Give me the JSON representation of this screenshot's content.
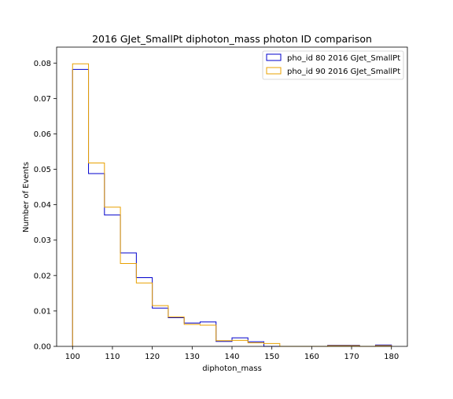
{
  "chart_data": {
    "type": "step",
    "title": "2016 GJet_SmallPt diphoton_mass photon ID comparison",
    "xlabel": "diphoton_mass",
    "ylabel": "Number of Events",
    "xlim": [
      96,
      184
    ],
    "ylim": [
      0,
      0.0845
    ],
    "xticks": [
      100,
      110,
      120,
      130,
      140,
      150,
      160,
      170,
      180
    ],
    "yticks": [
      0.0,
      0.01,
      0.02,
      0.03,
      0.04,
      0.05,
      0.06,
      0.07,
      0.08
    ],
    "ytick_labels": [
      "0.00",
      "0.01",
      "0.02",
      "0.03",
      "0.04",
      "0.05",
      "0.06",
      "0.07",
      "0.08"
    ],
    "bin_edges": [
      100,
      104,
      108,
      112,
      116,
      120,
      124,
      128,
      132,
      136,
      140,
      144,
      148,
      152,
      156,
      160,
      164,
      168,
      172,
      176,
      180
    ],
    "legend_position": "upper right",
    "series": [
      {
        "name": "pho_id 80 2016 GJet_SmallPt",
        "color": "#0000cc",
        "values": [
          0.0782,
          0.0488,
          0.0371,
          0.0264,
          0.0194,
          0.0108,
          0.0081,
          0.0066,
          0.0069,
          0.0014,
          0.0024,
          0.0013,
          0.0,
          0.0,
          0.0,
          0.0,
          0.0003,
          0.0003,
          0.0,
          0.0004
        ]
      },
      {
        "name": "pho_id 90 2016 GJet_SmallPt",
        "color": "#e8a000",
        "values": [
          0.0798,
          0.0518,
          0.0393,
          0.0234,
          0.0179,
          0.0115,
          0.0083,
          0.0062,
          0.006,
          0.0016,
          0.0017,
          0.001,
          0.0008,
          0.0,
          0.0,
          0.0,
          0.0002,
          0.0002,
          0.0,
          0.0002
        ]
      }
    ]
  }
}
